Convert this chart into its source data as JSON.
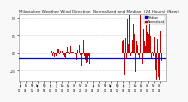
{
  "title": "Milwaukee Weather Wind Direction  Normalized and Median  (24 Hours) (New)",
  "bg_color": "#f8f8f8",
  "plot_bg_color": "#ffffff",
  "grid_color": "#aaaaaa",
  "bar_color": "#cc0000",
  "median_color": "#0000dd",
  "median_value": -0.15,
  "ylim": [
    -0.8,
    1.1
  ],
  "n_points": 144,
  "seed": 7,
  "title_fontsize": 3.0,
  "tick_fontsize": 1.8,
  "legend_fontsize": 2.2,
  "legend_label_blue": "Median",
  "legend_label_red": "Normalized"
}
